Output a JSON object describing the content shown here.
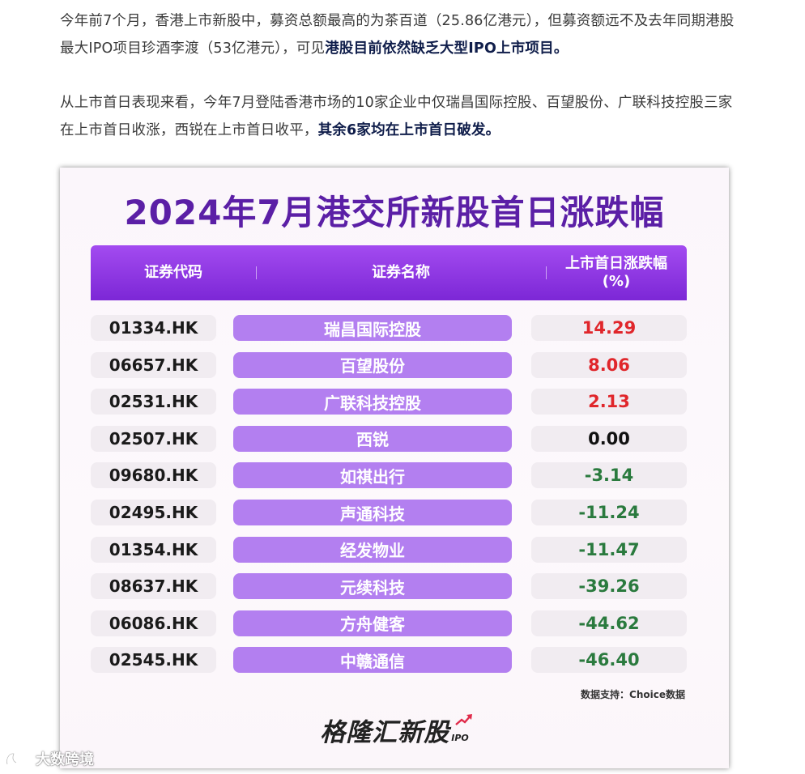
{
  "intro": {
    "p1_plain": "今年前7个月，香港上市新股中，募资总额最高的为茶百道（25.86亿港元），但募资额远不及去年同期港股最大IPO项目珍酒李渡（53亿港元），可见",
    "p1_bold": "港股目前依然缺乏大型IPO上市项目。",
    "p2_plain": "从上市首日表现来看，今年7月登陆香港市场的10家企业中仅瑞昌国际控股、百望股份、广联科技控股三家在上市首日收涨，西锐在上市首日收平，",
    "p2_bold": "其余6家均在上市首日破发。"
  },
  "card": {
    "title": "2024年7月港交所新股首日涨跌幅",
    "headers": {
      "code": "证券代码",
      "name": "证券名称",
      "change": "上市首日涨跌幅\n(%)"
    },
    "rows": [
      {
        "code": "01334.HK",
        "name": "瑞昌国际控股",
        "change": "14.29",
        "color": "#e0262b"
      },
      {
        "code": "06657.HK",
        "name": "百望股份",
        "change": "8.06",
        "color": "#e0262b"
      },
      {
        "code": "02531.HK",
        "name": "广联科技控股",
        "change": "2.13",
        "color": "#e0262b"
      },
      {
        "code": "02507.HK",
        "name": "西锐",
        "change": "0.00",
        "color": "#111111"
      },
      {
        "code": "09680.HK",
        "name": "如祺出行",
        "change": "-3.14",
        "color": "#2a7a3e"
      },
      {
        "code": "02495.HK",
        "name": "声通科技",
        "change": "-11.24",
        "color": "#2a7a3e"
      },
      {
        "code": "01354.HK",
        "name": "经发物业",
        "change": "-11.47",
        "color": "#2a7a3e"
      },
      {
        "code": "08637.HK",
        "name": "元续科技",
        "change": "-39.26",
        "color": "#2a7a3e"
      },
      {
        "code": "06086.HK",
        "name": "方舟健客",
        "change": "-44.62",
        "color": "#2a7a3e"
      },
      {
        "code": "02545.HK",
        "name": "中赣通信",
        "change": "-46.40",
        "color": "#2a7a3e"
      }
    ],
    "source": "数据支持：Choice数据",
    "brand": "格隆汇新股",
    "brand_sub": "IPO"
  },
  "watermark": {
    "text": "大数跨境",
    "logo_icon": "dashu-logo-icon"
  },
  "colors": {
    "title": "#5b1fa6",
    "header_bg": "#8a33e0",
    "name_cell_bg": "#b37ff0",
    "up": "#e0262b",
    "flat": "#111111",
    "down": "#2a7a3e"
  }
}
